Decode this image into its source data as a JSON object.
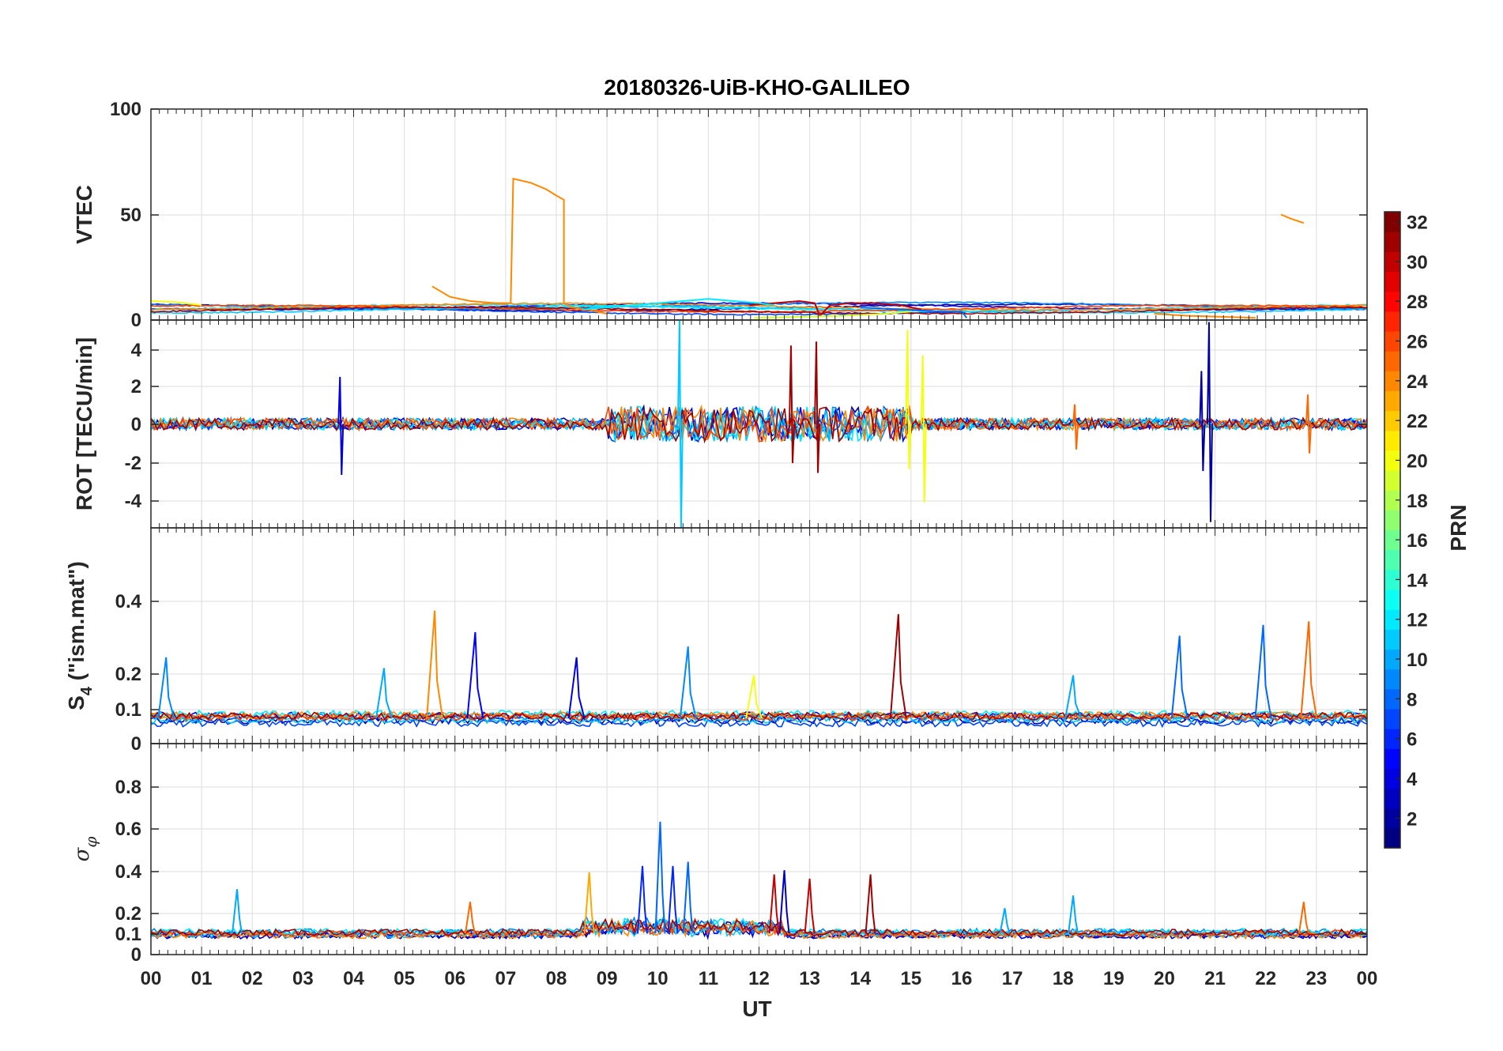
{
  "chart_data": {
    "type": "line",
    "title": "20180326-UiB-KHO-GALILEO",
    "xlabel": "UT",
    "x_ticks": [
      "00",
      "01",
      "02",
      "03",
      "04",
      "05",
      "06",
      "07",
      "08",
      "09",
      "10",
      "11",
      "12",
      "13",
      "14",
      "15",
      "16",
      "17",
      "18",
      "19",
      "20",
      "21",
      "22",
      "23",
      "00"
    ],
    "xlim": [
      0,
      24
    ],
    "grid": true,
    "colorbar": {
      "label": "PRN",
      "range": [
        1,
        32
      ],
      "ticks": [
        "2",
        "4",
        "6",
        "8",
        "10",
        "12",
        "14",
        "16",
        "18",
        "20",
        "22",
        "24",
        "26",
        "28",
        "30",
        "32"
      ],
      "colormap": "jet"
    },
    "panels": [
      {
        "id": "vtec",
        "ylabel": "VTEC",
        "ylim": [
          0,
          100
        ],
        "yticks": [
          "0",
          "50",
          "100"
        ],
        "features": [
          {
            "prn": 24,
            "x": [
              5.55,
              5.9,
              6.3,
              6.8,
              7.1
            ],
            "y": [
              16,
              11,
              9,
              8,
              8
            ]
          },
          {
            "prn": 24,
            "x": [
              7.1,
              7.15,
              7.5,
              7.8,
              8.0,
              8.15,
              8.15,
              8.3,
              8.6,
              9.0
            ],
            "y": [
              8,
              67,
              65,
              62,
              59,
              57,
              8,
              6,
              5,
              3
            ]
          },
          {
            "prn": 24,
            "x": [
              22.3,
              22.5,
              22.75
            ],
            "y": [
              50,
              48,
              46
            ]
          },
          {
            "prn": 24,
            "x": [
              19.8,
              20.5,
              21.2,
              21.8
            ],
            "y": [
              3,
              2,
              1.5,
              1
            ]
          },
          {
            "prn": 30,
            "x": [
              11.8,
              12.3,
              12.8,
              13.1,
              13.2,
              13.4,
              13.8,
              14.3,
              14.8,
              15.2
            ],
            "y": [
              7,
              8,
              9,
              8,
              2,
              7,
              8,
              8,
              7,
              5
            ]
          },
          {
            "prn": 20,
            "x": [
              0.0,
              0.5,
              1.0
            ],
            "y": [
              9,
              8.5,
              7
            ]
          },
          {
            "prn": 19,
            "x": [
              11.9,
              12.8,
              13.6,
              14.5,
              15.0
            ],
            "y": [
              1,
              1.5,
              2,
              3,
              4
            ]
          },
          {
            "prn": 12,
            "x": [
              8.5,
              9.5,
              10.5,
              11.0,
              11.5,
              12.0,
              12.3
            ],
            "y": [
              5,
              7,
              9,
              10,
              9,
              8,
              7
            ]
          },
          {
            "prn": 8,
            "x": [
              14.0,
              14.8,
              15.6,
              16.0,
              16.1
            ],
            "y": [
              6,
              5,
              4,
              4,
              1
            ]
          }
        ]
      },
      {
        "id": "rot",
        "ylabel": "ROT [TECU/min]",
        "ylim": [
          -5.3,
          5.3
        ],
        "yticks": [
          "-4",
          "-2",
          "0",
          "2",
          "4"
        ],
        "spikes": [
          {
            "prn": 2,
            "x": 20.85,
            "y": [
              -5.0,
              5.2
            ]
          },
          {
            "prn": 2,
            "x": 20.7,
            "y": [
              -2.4,
              2.7
            ]
          },
          {
            "prn": 11,
            "x": 10.4,
            "y": [
              -5.3,
              5.3
            ]
          },
          {
            "prn": 20,
            "x": 14.9,
            "y": [
              -2.3,
              4.8
            ]
          },
          {
            "prn": 20,
            "x": 15.2,
            "y": [
              -4.0,
              3.5
            ]
          },
          {
            "prn": 31,
            "x": 13.1,
            "y": [
              -2.5,
              4.2
            ]
          },
          {
            "prn": 31,
            "x": 12.6,
            "y": [
              -2.0,
              4.0
            ]
          },
          {
            "prn": 4,
            "x": 3.7,
            "y": [
              -2.6,
              2.4
            ]
          },
          {
            "prn": 25,
            "x": 22.8,
            "y": [
              -1.5,
              1.5
            ]
          },
          {
            "prn": 25,
            "x": 18.2,
            "y": [
              -1.3,
              1.0
            ]
          }
        ]
      },
      {
        "id": "s4",
        "ylabel": "S4 (\"ism.mat\")",
        "ylim": [
          0,
          0.6
        ],
        "yticks": [
          "0",
          "0.1",
          "0.2",
          "0.4"
        ],
        "peaks": [
          {
            "prn": 24,
            "x": 5.6,
            "y": 0.37
          },
          {
            "prn": 31,
            "x": 14.75,
            "y": 0.36
          },
          {
            "prn": 25,
            "x": 22.85,
            "y": 0.34
          },
          {
            "prn": 5,
            "x": 6.4,
            "y": 0.31
          },
          {
            "prn": 8,
            "x": 21.95,
            "y": 0.33
          },
          {
            "prn": 8,
            "x": 20.3,
            "y": 0.3
          },
          {
            "prn": 9,
            "x": 0.3,
            "y": 0.24
          },
          {
            "prn": 9,
            "x": 10.6,
            "y": 0.27
          },
          {
            "prn": 4,
            "x": 8.4,
            "y": 0.24
          },
          {
            "prn": 20,
            "x": 11.9,
            "y": 0.19
          },
          {
            "prn": 10,
            "x": 4.6,
            "y": 0.21
          },
          {
            "prn": 10,
            "x": 18.2,
            "y": 0.19
          }
        ]
      },
      {
        "id": "sigma_phi",
        "ylabel": "σφ",
        "ylim": [
          0,
          1.0
        ],
        "yticks": [
          "0",
          "0.1",
          "0.2",
          "0.4",
          "0.6",
          "0.8"
        ],
        "peaks": [
          {
            "prn": 8,
            "x": 10.05,
            "y": 0.63
          },
          {
            "prn": 8,
            "x": 10.6,
            "y": 0.44
          },
          {
            "prn": 6,
            "x": 9.7,
            "y": 0.42
          },
          {
            "prn": 6,
            "x": 10.3,
            "y": 0.42
          },
          {
            "prn": 3,
            "x": 12.5,
            "y": 0.4
          },
          {
            "prn": 23,
            "x": 8.65,
            "y": 0.39
          },
          {
            "prn": 30,
            "x": 12.3,
            "y": 0.38
          },
          {
            "prn": 31,
            "x": 14.2,
            "y": 0.38
          },
          {
            "prn": 30,
            "x": 13.0,
            "y": 0.36
          },
          {
            "prn": 10,
            "x": 1.7,
            "y": 0.31
          },
          {
            "prn": 10,
            "x": 18.2,
            "y": 0.28
          },
          {
            "prn": 25,
            "x": 22.75,
            "y": 0.25
          },
          {
            "prn": 10,
            "x": 16.85,
            "y": 0.22
          },
          {
            "prn": 25,
            "x": 6.3,
            "y": 0.25
          }
        ]
      }
    ]
  }
}
